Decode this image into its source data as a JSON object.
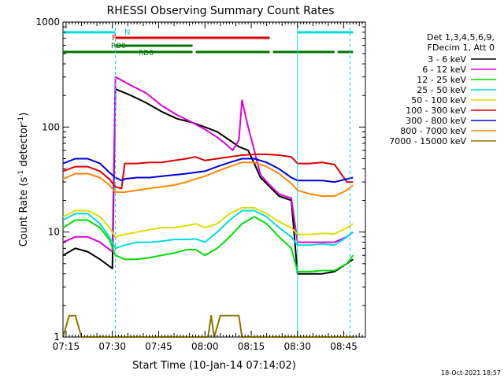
{
  "chart_data": {
    "type": "line",
    "title": "RHESSI Observing Summary Count Rates",
    "xlabel": "Start Time (10-Jan-14 07:14:02)",
    "ylabel_main": "Count Rate (s",
    "ylabel_sup1": "-1",
    "ylabel_mid": " detector",
    "ylabel_sup2": "-1",
    "ylabel_end": ")",
    "y_scale": "log",
    "ylim": [
      1,
      1000
    ],
    "xlim_minutes": [
      0,
      98
    ],
    "x_ticks": [
      {
        "label": "07:15",
        "minutes": 1
      },
      {
        "label": "07:30",
        "minutes": 16
      },
      {
        "label": "07:45",
        "minutes": 31
      },
      {
        "label": "08:00",
        "minutes": 46
      },
      {
        "label": "08:15",
        "minutes": 61
      },
      {
        "label": "08:30",
        "minutes": 76
      },
      {
        "label": "08:45",
        "minutes": 91
      }
    ],
    "y_tick_labels": [
      "1",
      "10",
      "100",
      "1000"
    ],
    "legend_header": [
      "Det 1,3,4,5,6,9,",
      "FDecim 1, Att 0"
    ],
    "timestamp": "18-Oct-2021 18:57",
    "flag_labels": {
      "N": "N",
      "F": "F",
      "RD0": "RD0",
      "RD6": "RD6"
    },
    "series": [
      {
        "name": "3 - 6 keV",
        "color": "#000000",
        "values": [
          [
            0,
            6
          ],
          [
            4,
            7
          ],
          [
            8,
            6.5
          ],
          [
            12,
            5.5
          ],
          [
            16,
            4.5
          ],
          [
            17,
            230
          ],
          [
            22,
            200
          ],
          [
            27,
            170
          ],
          [
            32,
            140
          ],
          [
            37,
            120
          ],
          [
            42,
            110
          ],
          [
            46,
            100
          ],
          [
            50,
            90
          ],
          [
            54,
            75
          ],
          [
            57,
            65
          ],
          [
            60,
            60
          ],
          [
            62,
            45
          ],
          [
            64,
            33
          ],
          [
            67,
            27
          ],
          [
            70,
            22
          ],
          [
            74,
            20
          ],
          [
            76,
            4
          ],
          [
            80,
            4
          ],
          [
            84,
            4
          ],
          [
            88,
            4.2
          ],
          [
            92,
            5
          ],
          [
            94,
            5.5
          ]
        ]
      },
      {
        "name": "6 - 12 keV",
        "color": "#dd00dd",
        "values": [
          [
            0,
            8
          ],
          [
            4,
            9
          ],
          [
            8,
            9
          ],
          [
            12,
            8
          ],
          [
            16,
            6.5
          ],
          [
            17,
            300
          ],
          [
            22,
            250
          ],
          [
            27,
            210
          ],
          [
            32,
            160
          ],
          [
            37,
            130
          ],
          [
            42,
            110
          ],
          [
            46,
            95
          ],
          [
            50,
            80
          ],
          [
            53,
            68
          ],
          [
            55,
            60
          ],
          [
            57,
            75
          ],
          [
            58,
            180
          ],
          [
            60,
            100
          ],
          [
            62,
            60
          ],
          [
            64,
            35
          ],
          [
            67,
            28
          ],
          [
            70,
            23
          ],
          [
            74,
            21
          ],
          [
            76,
            8
          ],
          [
            80,
            8
          ],
          [
            84,
            8
          ],
          [
            88,
            8
          ],
          [
            92,
            9
          ],
          [
            94,
            10
          ]
        ]
      },
      {
        "name": "12 - 25 keV",
        "color": "#00dd00",
        "values": [
          [
            0,
            11
          ],
          [
            4,
            13
          ],
          [
            8,
            13
          ],
          [
            12,
            11
          ],
          [
            15,
            8.5
          ],
          [
            17,
            6
          ],
          [
            20,
            5.5
          ],
          [
            24,
            5.5
          ],
          [
            28,
            5.7
          ],
          [
            32,
            6
          ],
          [
            36,
            6.3
          ],
          [
            40,
            6.8
          ],
          [
            43,
            6.8
          ],
          [
            46,
            6
          ],
          [
            50,
            7
          ],
          [
            54,
            9
          ],
          [
            58,
            12
          ],
          [
            62,
            14
          ],
          [
            66,
            12
          ],
          [
            70,
            9
          ],
          [
            74,
            7
          ],
          [
            76,
            4.2
          ],
          [
            80,
            4.2
          ],
          [
            84,
            4.3
          ],
          [
            88,
            4.3
          ],
          [
            92,
            5
          ],
          [
            94,
            6
          ]
        ]
      },
      {
        "name": "25 - 50 keV",
        "color": "#00dddd",
        "values": [
          [
            0,
            13
          ],
          [
            4,
            15
          ],
          [
            8,
            15
          ],
          [
            12,
            12
          ],
          [
            15,
            9
          ],
          [
            17,
            7
          ],
          [
            20,
            7.5
          ],
          [
            24,
            8
          ],
          [
            28,
            8
          ],
          [
            32,
            8.2
          ],
          [
            36,
            8.5
          ],
          [
            40,
            8.5
          ],
          [
            43,
            8.6
          ],
          [
            46,
            8
          ],
          [
            50,
            10
          ],
          [
            54,
            13
          ],
          [
            58,
            16
          ],
          [
            62,
            16
          ],
          [
            66,
            14
          ],
          [
            70,
            11
          ],
          [
            74,
            9
          ],
          [
            76,
            7.5
          ],
          [
            80,
            7.5
          ],
          [
            84,
            7.7
          ],
          [
            88,
            7.5
          ],
          [
            92,
            9
          ],
          [
            94,
            10
          ]
        ]
      },
      {
        "name": "50 - 100 keV",
        "color": "#dddd00",
        "values": [
          [
            0,
            14
          ],
          [
            4,
            16
          ],
          [
            8,
            16
          ],
          [
            12,
            14
          ],
          [
            15,
            11
          ],
          [
            17,
            9
          ],
          [
            20,
            9.5
          ],
          [
            24,
            10
          ],
          [
            28,
            10.5
          ],
          [
            32,
            11
          ],
          [
            36,
            11
          ],
          [
            40,
            11.5
          ],
          [
            43,
            12
          ],
          [
            46,
            11
          ],
          [
            50,
            12
          ],
          [
            54,
            15
          ],
          [
            58,
            17
          ],
          [
            62,
            17
          ],
          [
            66,
            15
          ],
          [
            70,
            12.5
          ],
          [
            74,
            11
          ],
          [
            76,
            9.5
          ],
          [
            80,
            9.5
          ],
          [
            84,
            9.7
          ],
          [
            88,
            9.6
          ],
          [
            92,
            11
          ],
          [
            94,
            12
          ]
        ]
      },
      {
        "name": "100 - 300 keV",
        "color": "#dd0000",
        "values": [
          [
            0,
            38
          ],
          [
            4,
            42
          ],
          [
            8,
            42
          ],
          [
            12,
            38
          ],
          [
            15,
            32
          ],
          [
            17,
            27
          ],
          [
            19,
            26
          ],
          [
            20,
            45
          ],
          [
            24,
            45
          ],
          [
            28,
            46
          ],
          [
            32,
            46
          ],
          [
            36,
            48
          ],
          [
            40,
            50
          ],
          [
            43,
            52
          ],
          [
            46,
            48
          ],
          [
            50,
            50
          ],
          [
            54,
            52
          ],
          [
            58,
            54
          ],
          [
            62,
            55
          ],
          [
            66,
            55
          ],
          [
            70,
            54
          ],
          [
            74,
            52
          ],
          [
            76,
            45
          ],
          [
            80,
            45
          ],
          [
            84,
            46
          ],
          [
            88,
            44
          ],
          [
            92,
            30
          ],
          [
            94,
            30
          ]
        ]
      },
      {
        "name": "300 - 800 keV",
        "color": "#0000dd",
        "values": [
          [
            0,
            45
          ],
          [
            4,
            50
          ],
          [
            8,
            50
          ],
          [
            12,
            45
          ],
          [
            15,
            37
          ],
          [
            17,
            33
          ],
          [
            19,
            31
          ],
          [
            20,
            32
          ],
          [
            24,
            33
          ],
          [
            28,
            33
          ],
          [
            32,
            34
          ],
          [
            36,
            35
          ],
          [
            40,
            36
          ],
          [
            43,
            37
          ],
          [
            46,
            38
          ],
          [
            50,
            42
          ],
          [
            54,
            46
          ],
          [
            58,
            50
          ],
          [
            62,
            50
          ],
          [
            66,
            46
          ],
          [
            70,
            40
          ],
          [
            74,
            33
          ],
          [
            76,
            31
          ],
          [
            80,
            31
          ],
          [
            84,
            31
          ],
          [
            88,
            30
          ],
          [
            92,
            32
          ],
          [
            94,
            33
          ]
        ]
      },
      {
        "name": "800 - 7000 keV",
        "color": "#ff8800",
        "values": [
          [
            0,
            32
          ],
          [
            4,
            36
          ],
          [
            8,
            36
          ],
          [
            12,
            33
          ],
          [
            15,
            28
          ],
          [
            17,
            24
          ],
          [
            20,
            24
          ],
          [
            24,
            25
          ],
          [
            28,
            26
          ],
          [
            32,
            27
          ],
          [
            36,
            28
          ],
          [
            40,
            30
          ],
          [
            43,
            32
          ],
          [
            46,
            34
          ],
          [
            50,
            38
          ],
          [
            54,
            42
          ],
          [
            58,
            46
          ],
          [
            62,
            46
          ],
          [
            66,
            42
          ],
          [
            70,
            36
          ],
          [
            74,
            29
          ],
          [
            76,
            25
          ],
          [
            80,
            23
          ],
          [
            84,
            22
          ],
          [
            88,
            22
          ],
          [
            92,
            25
          ],
          [
            94,
            28
          ]
        ]
      },
      {
        "name": "7000 - 15000 keV",
        "color": "#8b7500",
        "values": [
          [
            0,
            1
          ],
          [
            2,
            1.6
          ],
          [
            4,
            1.6
          ],
          [
            6,
            1
          ],
          [
            47,
            1
          ],
          [
            48,
            1.6
          ],
          [
            49,
            1
          ],
          [
            51,
            1.6
          ],
          [
            53,
            1.6
          ],
          [
            55,
            1.6
          ],
          [
            57,
            1.6
          ],
          [
            58,
            1
          ],
          [
            94,
            1
          ]
        ]
      }
    ]
  }
}
